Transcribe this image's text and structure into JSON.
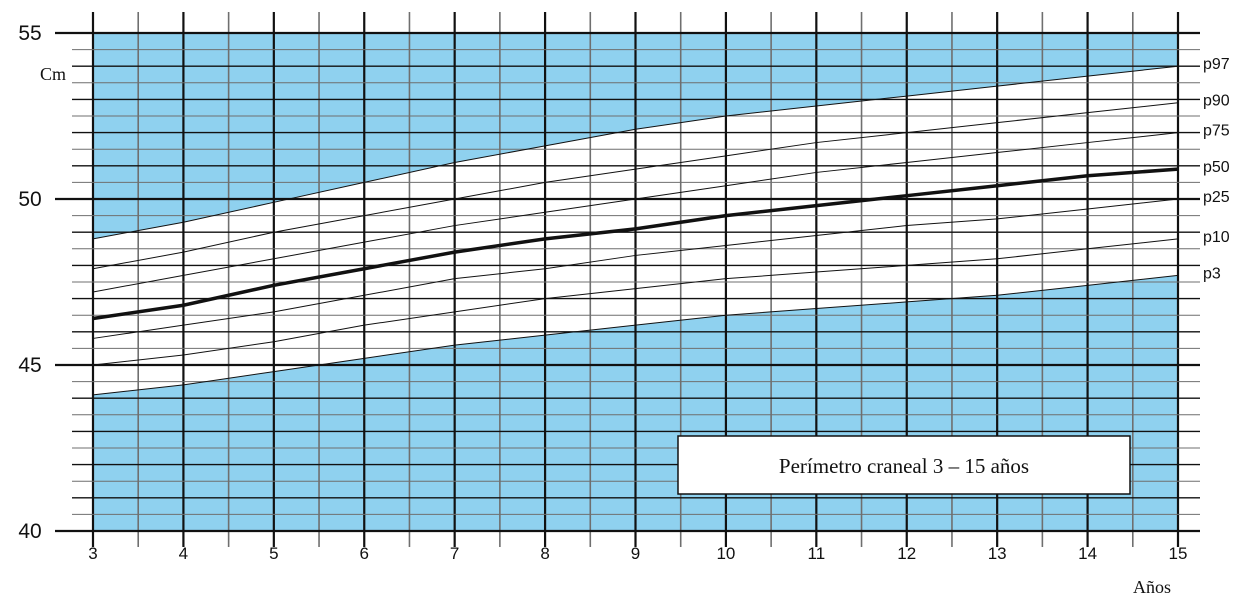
{
  "chart_data": {
    "type": "line",
    "title": "Perímetro craneal  3 – 15 años",
    "xlabel": "Años",
    "ylabel": "Cm",
    "xlim": [
      3,
      15
    ],
    "ylim": [
      40,
      55
    ],
    "x_ticks": [
      "3",
      "4",
      "5",
      "6",
      "7",
      "8",
      "9",
      "10",
      "11",
      "12",
      "13",
      "14",
      "15"
    ],
    "y_ticks": [
      "40",
      "45",
      "50",
      "55"
    ],
    "grid": true,
    "legend_position": "right",
    "x": [
      3,
      4,
      5,
      6,
      7,
      8,
      9,
      10,
      11,
      12,
      13,
      14,
      15
    ],
    "series": [
      {
        "name": "p3",
        "values": [
          44.1,
          44.4,
          44.8,
          45.2,
          45.6,
          45.9,
          46.2,
          46.5,
          46.7,
          46.9,
          47.1,
          47.4,
          47.7
        ]
      },
      {
        "name": "p10",
        "values": [
          45.0,
          45.3,
          45.7,
          46.2,
          46.6,
          47.0,
          47.3,
          47.6,
          47.8,
          48.0,
          48.2,
          48.5,
          48.8
        ]
      },
      {
        "name": "p25",
        "values": [
          45.8,
          46.2,
          46.6,
          47.1,
          47.6,
          47.9,
          48.3,
          48.6,
          48.9,
          49.2,
          49.4,
          49.7,
          50.0
        ]
      },
      {
        "name": "p50",
        "values": [
          46.4,
          46.8,
          47.4,
          47.9,
          48.4,
          48.8,
          49.1,
          49.5,
          49.8,
          50.1,
          50.4,
          50.7,
          50.9
        ]
      },
      {
        "name": "p75",
        "values": [
          47.2,
          47.7,
          48.2,
          48.7,
          49.2,
          49.6,
          50.0,
          50.4,
          50.8,
          51.1,
          51.4,
          51.7,
          52.0
        ]
      },
      {
        "name": "p90",
        "values": [
          47.9,
          48.4,
          49.0,
          49.5,
          50.0,
          50.5,
          50.9,
          51.3,
          51.7,
          52.0,
          52.3,
          52.6,
          52.9
        ]
      },
      {
        "name": "p97",
        "values": [
          48.8,
          49.3,
          49.9,
          50.5,
          51.1,
          51.6,
          52.1,
          52.5,
          52.8,
          53.1,
          53.4,
          53.7,
          54.0
        ]
      }
    ],
    "colors": {
      "shade": "#8fd1ef",
      "grid_major": "#111111",
      "grid_minor": "#6f6f6f",
      "line": "#111111"
    }
  }
}
